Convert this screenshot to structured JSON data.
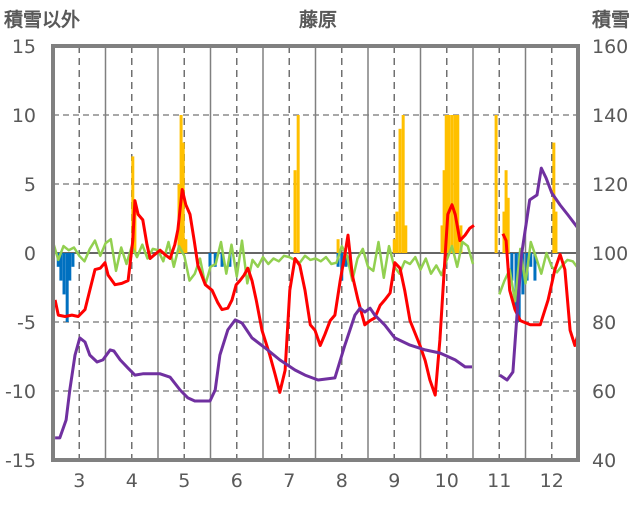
{
  "chart_data": {
    "type": "bar+line",
    "title": "藤原",
    "ylabel_left": "積雪以外",
    "ylabel_right": "積雪",
    "ylim_left": [
      -15,
      15
    ],
    "ylim_right": [
      40,
      160
    ],
    "xlim": [
      2.5,
      12.5
    ],
    "yticks_left": [
      "15",
      "10",
      "5",
      "0",
      "-5",
      "-10",
      "-15"
    ],
    "yticks_left_values": [
      15,
      10,
      5,
      0,
      -5,
      -10,
      -15
    ],
    "yticks_right": [
      "160",
      "140",
      "120",
      "100",
      "80",
      "60",
      "40"
    ],
    "yticks_right_values": [
      160,
      140,
      120,
      100,
      80,
      60,
      40
    ],
    "xticks": [
      "3",
      "4",
      "5",
      "6",
      "7",
      "8",
      "9",
      "10",
      "11",
      "12"
    ],
    "xticks_values": [
      3,
      4,
      5,
      6,
      7,
      8,
      9,
      10,
      11,
      12
    ],
    "grid": true,
    "colors": {
      "red": "#ff0000",
      "green": "#92d050",
      "purple": "#7030a0",
      "orange": "#ffc000",
      "blue": "#0070c0",
      "axis": "#808080"
    },
    "bars_positive": [
      [
        4.02,
        7
      ],
      [
        4.06,
        3
      ],
      [
        4.9,
        5
      ],
      [
        4.94,
        10
      ],
      [
        4.98,
        8
      ],
      [
        5.03,
        1
      ],
      [
        7.11,
        6
      ],
      [
        7.17,
        10
      ],
      [
        7.93,
        1
      ],
      [
        9.0,
        1
      ],
      [
        9.05,
        3
      ],
      [
        9.11,
        9
      ],
      [
        9.17,
        10
      ],
      [
        9.22,
        2
      ],
      [
        9.91,
        2
      ],
      [
        9.95,
        6
      ],
      [
        9.99,
        10
      ],
      [
        10.04,
        10
      ],
      [
        10.1,
        10
      ],
      [
        10.16,
        10
      ],
      [
        10.21,
        10
      ],
      [
        10.27,
        2
      ],
      [
        10.94,
        10
      ],
      [
        11.09,
        3
      ],
      [
        11.13,
        6
      ],
      [
        11.17,
        4
      ],
      [
        12.04,
        8
      ],
      [
        12.08,
        3
      ]
    ],
    "bars_negative": [
      [
        2.6,
        -1
      ],
      [
        2.65,
        -2
      ],
      [
        2.71,
        -3
      ],
      [
        2.77,
        -5
      ],
      [
        2.82,
        -2
      ],
      [
        2.88,
        -1
      ],
      [
        5.49,
        -1
      ],
      [
        5.59,
        -1
      ],
      [
        5.72,
        -1
      ],
      [
        5.87,
        -1
      ],
      [
        7.93,
        -1
      ],
      [
        8.0,
        -2
      ],
      [
        8.08,
        -1
      ],
      [
        8.16,
        -1
      ],
      [
        11.24,
        -2
      ],
      [
        11.32,
        -4
      ],
      [
        11.38,
        -5
      ],
      [
        11.45,
        -3
      ],
      [
        11.53,
        -2
      ],
      [
        11.6,
        -1
      ],
      [
        11.68,
        -2
      ]
    ],
    "red_series": [
      [
        [
          2.54,
          -3.4
        ],
        [
          2.6,
          -4.5
        ],
        [
          2.73,
          -4.6
        ],
        [
          2.86,
          -4.5
        ],
        [
          2.98,
          -4.6
        ],
        [
          3.11,
          -4.1
        ],
        [
          3.2,
          -2.7
        ],
        [
          3.3,
          -1.2
        ],
        [
          3.4,
          -1.1
        ],
        [
          3.49,
          -0.7
        ],
        [
          3.55,
          -1.6
        ],
        [
          3.68,
          -2.3
        ],
        [
          3.81,
          -2.2
        ],
        [
          3.93,
          -2.0
        ],
        [
          4.02,
          0.9
        ],
        [
          4.06,
          3.8
        ],
        [
          4.12,
          2.8
        ],
        [
          4.21,
          2.4
        ],
        [
          4.29,
          0.6
        ],
        [
          4.35,
          -0.4
        ],
        [
          4.44,
          -0.1
        ],
        [
          4.54,
          0.2
        ],
        [
          4.63,
          -0.1
        ],
        [
          4.73,
          -0.4
        ],
        [
          4.82,
          0.6
        ],
        [
          4.88,
          1.7
        ],
        [
          4.96,
          4.6
        ],
        [
          5.03,
          3.5
        ],
        [
          5.11,
          2.8
        ],
        [
          5.19,
          0.9
        ],
        [
          5.26,
          -0.9
        ],
        [
          5.4,
          -2.3
        ],
        [
          5.53,
          -2.7
        ],
        [
          5.64,
          -3.6
        ],
        [
          5.72,
          -4.1
        ],
        [
          5.83,
          -4.0
        ],
        [
          5.91,
          -3.4
        ],
        [
          5.99,
          -2.3
        ],
        [
          6.06,
          -2.0
        ],
        [
          6.14,
          -1.6
        ],
        [
          6.21,
          -1.1
        ],
        [
          6.29,
          -2.0
        ],
        [
          6.37,
          -3.4
        ],
        [
          6.48,
          -5.6
        ],
        [
          6.63,
          -7.4
        ],
        [
          6.73,
          -8.8
        ],
        [
          6.82,
          -10.1
        ],
        [
          6.92,
          -8.5
        ],
        [
          7.01,
          -2.7
        ],
        [
          7.11,
          -0.4
        ],
        [
          7.2,
          -0.9
        ],
        [
          7.3,
          -2.7
        ],
        [
          7.4,
          -5.2
        ],
        [
          7.49,
          -5.6
        ],
        [
          7.59,
          -6.7
        ],
        [
          7.68,
          -5.9
        ],
        [
          7.78,
          -4.9
        ],
        [
          7.87,
          -4.5
        ],
        [
          7.97,
          -2.0
        ],
        [
          8.06,
          -0.1
        ],
        [
          8.12,
          1.3
        ],
        [
          8.2,
          -1.6
        ],
        [
          8.31,
          -3.4
        ],
        [
          8.44,
          -5.2
        ],
        [
          8.54,
          -4.9
        ],
        [
          8.63,
          -4.7
        ],
        [
          8.73,
          -3.8
        ],
        [
          8.82,
          -3.4
        ],
        [
          8.92,
          -2.9
        ],
        [
          9.01,
          -0.7
        ],
        [
          9.11,
          -1.1
        ],
        [
          9.2,
          -2.7
        ],
        [
          9.3,
          -4.9
        ],
        [
          9.49,
          -6.7
        ],
        [
          9.59,
          -7.8
        ],
        [
          9.68,
          -9.2
        ],
        [
          9.78,
          -10.3
        ],
        [
          9.87,
          -6.3
        ],
        [
          9.97,
          -0.1
        ],
        [
          10.02,
          2.8
        ],
        [
          10.1,
          3.5
        ],
        [
          10.16,
          2.8
        ],
        [
          10.25,
          0.9
        ],
        [
          10.35,
          1.3
        ],
        [
          10.44,
          1.8
        ],
        [
          10.52,
          2.0
        ]
      ],
      [
        [
          11.07,
          1.4
        ],
        [
          11.13,
          0.9
        ],
        [
          11.2,
          -2.7
        ],
        [
          11.3,
          -4.1
        ],
        [
          11.4,
          -4.9
        ],
        [
          11.59,
          -5.2
        ],
        [
          11.78,
          -5.2
        ],
        [
          11.93,
          -3.4
        ],
        [
          12.06,
          -1.2
        ],
        [
          12.16,
          -0.1
        ],
        [
          12.25,
          -1.2
        ],
        [
          12.35,
          -5.6
        ],
        [
          12.44,
          -6.7
        ],
        [
          12.5,
          -5.9
        ]
      ]
    ],
    "purple_series_right_axis": [
      [
        [
          2.54,
          46.4
        ],
        [
          2.63,
          46.4
        ],
        [
          2.75,
          51.6
        ],
        [
          2.82,
          60.3
        ],
        [
          2.92,
          70.4
        ],
        [
          3.01,
          75.4
        ],
        [
          3.11,
          74.2
        ],
        [
          3.2,
          70.4
        ],
        [
          3.34,
          68.4
        ],
        [
          3.45,
          69
        ],
        [
          3.59,
          71.9
        ],
        [
          3.66,
          71.6
        ],
        [
          3.78,
          69
        ],
        [
          3.93,
          66.6
        ],
        [
          4.06,
          64.6
        ],
        [
          4.21,
          65
        ],
        [
          4.35,
          65
        ],
        [
          4.54,
          65
        ],
        [
          4.73,
          64
        ],
        [
          4.92,
          60.3
        ],
        [
          5.07,
          58
        ],
        [
          5.2,
          57.1
        ],
        [
          5.49,
          57.1
        ],
        [
          5.59,
          60.3
        ],
        [
          5.68,
          70.4
        ],
        [
          5.83,
          77.7
        ],
        [
          5.97,
          80.6
        ],
        [
          6.1,
          79.7
        ],
        [
          6.29,
          75.4
        ],
        [
          6.54,
          72.5
        ],
        [
          6.82,
          69
        ],
        [
          7.11,
          66.1
        ],
        [
          7.3,
          64.6
        ],
        [
          7.55,
          63.2
        ],
        [
          7.87,
          63.8
        ],
        [
          8.06,
          73.3
        ],
        [
          8.25,
          82
        ],
        [
          8.35,
          84
        ],
        [
          8.44,
          82.9
        ],
        [
          8.54,
          84
        ],
        [
          8.63,
          82
        ],
        [
          8.82,
          79.1
        ],
        [
          9.01,
          75.4
        ],
        [
          9.3,
          73.3
        ],
        [
          9.59,
          71.9
        ],
        [
          9.87,
          71
        ],
        [
          10.16,
          69
        ],
        [
          10.35,
          67
        ],
        [
          10.48,
          67
        ]
      ],
      [
        [
          11.01,
          64.6
        ],
        [
          11.15,
          63.2
        ],
        [
          11.26,
          65.5
        ],
        [
          11.36,
          86.4
        ],
        [
          11.43,
          100
        ],
        [
          11.58,
          115.4
        ],
        [
          11.72,
          116.8
        ],
        [
          11.8,
          124.6
        ],
        [
          11.89,
          121.8
        ],
        [
          12.0,
          117.4
        ],
        [
          12.16,
          113.9
        ],
        [
          12.31,
          111
        ],
        [
          12.5,
          107.2
        ]
      ]
    ],
    "green_series": [
      {
        "x0": 2.5,
        "step": 0.1,
        "values": [
          0.8,
          -0.5,
          0.5,
          0.2,
          0.4,
          -0.2,
          -0.6,
          0.3,
          0.9,
          -0.2,
          0.7,
          1.0,
          -1.3,
          0.4,
          -0.8,
          0.5,
          -0.3,
          0.6,
          -0.4,
          0.3,
          0.2,
          -0.6,
          0.8,
          -1.0,
          0.5,
          -0.2,
          -2.0,
          -1.5,
          -0.4,
          -2.3,
          -1.0,
          -0.8,
          0.8,
          -1.5,
          0.6,
          -1.7,
          0.9,
          -2.2,
          -0.5,
          -1.0,
          -0.3,
          -0.8,
          -0.4,
          -0.6,
          -0.2,
          -0.3,
          -0.5,
          -0.7,
          -0.2,
          -0.5,
          -0.4,
          -0.6,
          -0.3,
          -0.8,
          -0.7,
          0.5,
          -0.2,
          -2.0,
          -0.4,
          0.3,
          -1.0,
          -1.3,
          0.8,
          -1.8,
          0.5,
          -1.0,
          -1.5,
          -0.6,
          -0.8,
          -0.3,
          -1.2,
          -0.4,
          -1.5,
          -0.9,
          -1.6,
          -0.5,
          0.5,
          -1.0,
          0.8,
          0.5,
          -0.8
        ]
      },
      {
        "x0": 11.0,
        "step": 0.1,
        "values": [
          -3.0,
          -2.0,
          -1.2,
          -3.5,
          0.3,
          -2.2,
          0.8,
          -0.3,
          -1.5,
          0.0,
          -1.0,
          -1.4,
          -0.9,
          -0.5,
          -0.6,
          -1.1
        ]
      }
    ]
  }
}
